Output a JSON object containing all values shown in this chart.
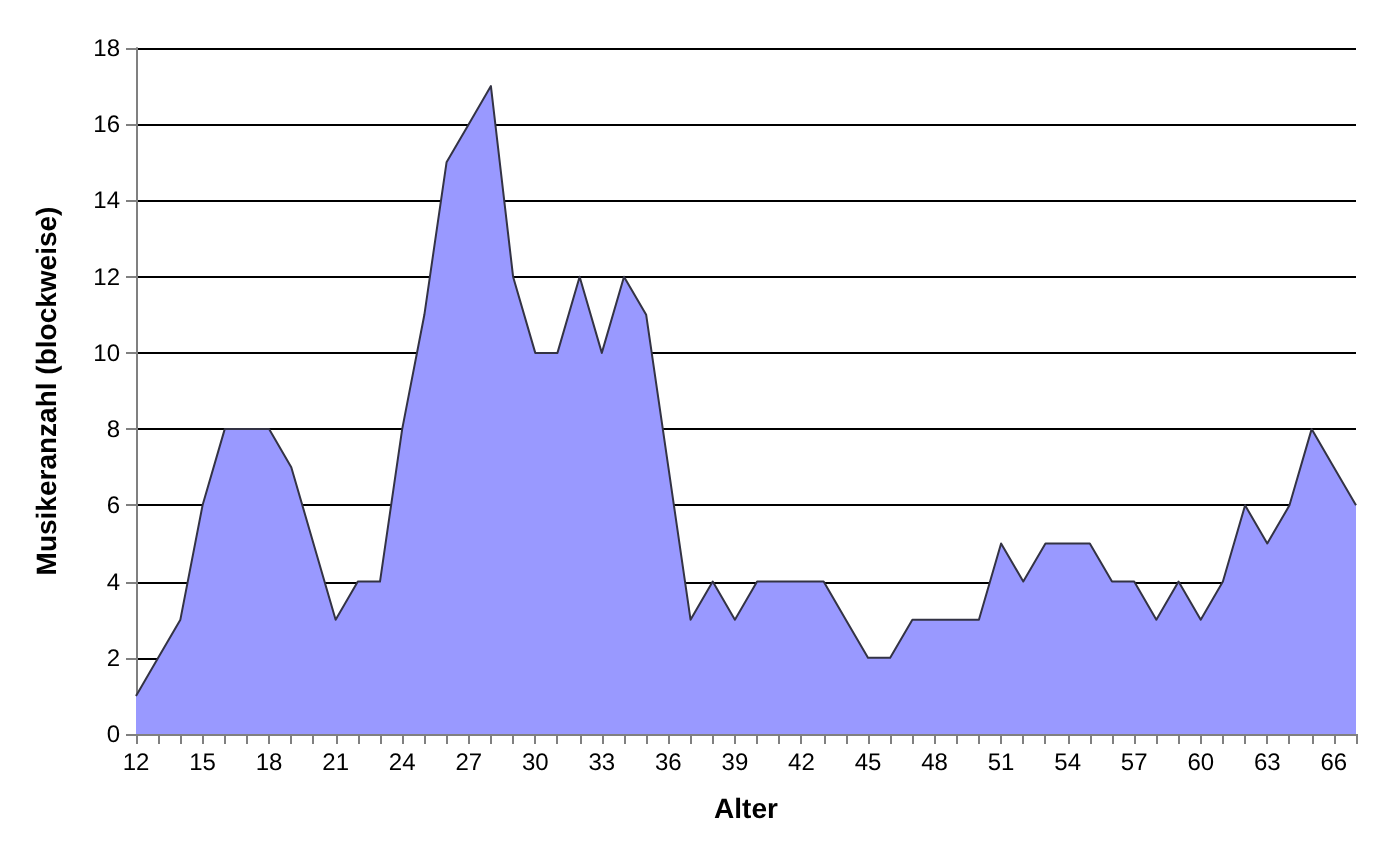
{
  "chart_data": {
    "type": "area",
    "xlabel": "Alter",
    "ylabel": "Musikeranzahl (blockweise)",
    "categories": [
      "12",
      null,
      null,
      "15",
      null,
      null,
      "18",
      null,
      null,
      "21",
      null,
      null,
      "24",
      null,
      null,
      "27",
      null,
      null,
      "30",
      null,
      null,
      "33",
      null,
      null,
      "36",
      null,
      null,
      "39",
      null,
      null,
      "42",
      null,
      null,
      "45",
      null,
      null,
      "48",
      null,
      null,
      "51",
      null,
      null,
      "54",
      null,
      null,
      "57",
      null,
      null,
      "60",
      null,
      null,
      "63",
      null,
      null,
      "66",
      null
    ],
    "series": [
      {
        "color": "#9999ff",
        "values": [
          1,
          2,
          3,
          6,
          8,
          8,
          8,
          7,
          5,
          3,
          4,
          4,
          8,
          11,
          15,
          16,
          17,
          12,
          10,
          10,
          12,
          10,
          12,
          11,
          7,
          3,
          4,
          3,
          4,
          4,
          4,
          4,
          3,
          2,
          2,
          3,
          3,
          3,
          3,
          5,
          4,
          5,
          5,
          5,
          4,
          4,
          3,
          4,
          3,
          4,
          6,
          5,
          6,
          8,
          7,
          6
        ]
      }
    ],
    "ylim": [
      0,
      18
    ],
    "yticks": [
      0,
      2,
      4,
      6,
      8,
      10,
      12,
      14,
      16,
      18
    ],
    "grid": "y"
  }
}
